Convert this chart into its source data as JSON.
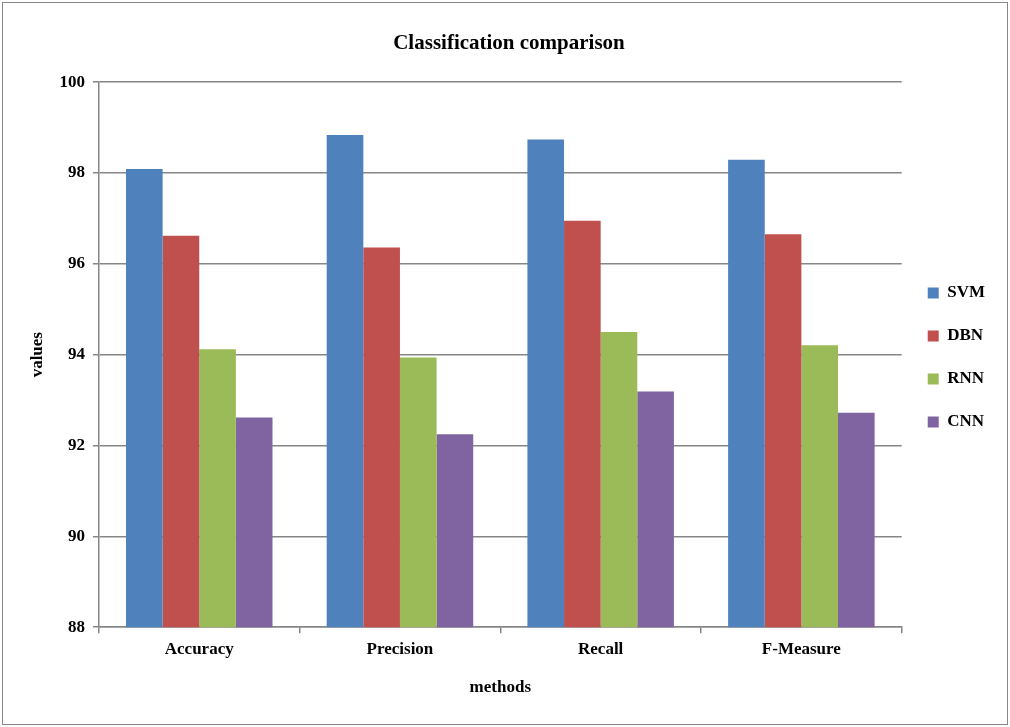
{
  "chart_data": {
    "type": "bar",
    "title": "Classification comparison",
    "xlabel": "methods",
    "ylabel": "values",
    "categories": [
      "Accuracy",
      "Precision",
      "Recall",
      "F-Measure"
    ],
    "series": [
      {
        "name": "SVM",
        "color": "#4f81bd",
        "values": [
          98.09,
          98.84,
          98.74,
          98.29
        ]
      },
      {
        "name": "DBN",
        "color": "#c0504d",
        "values": [
          96.62,
          96.36,
          96.95,
          96.65
        ]
      },
      {
        "name": "RNN",
        "color": "#9bbb59",
        "values": [
          94.12,
          93.94,
          94.5,
          94.21
        ]
      },
      {
        "name": "CNN",
        "color": "#8064a2",
        "values": [
          92.62,
          92.25,
          93.19,
          92.72
        ]
      }
    ],
    "ylim": [
      88,
      100
    ],
    "yticks": [
      88,
      90,
      92,
      94,
      96,
      98,
      100
    ],
    "grid": "y",
    "legend": "right"
  }
}
